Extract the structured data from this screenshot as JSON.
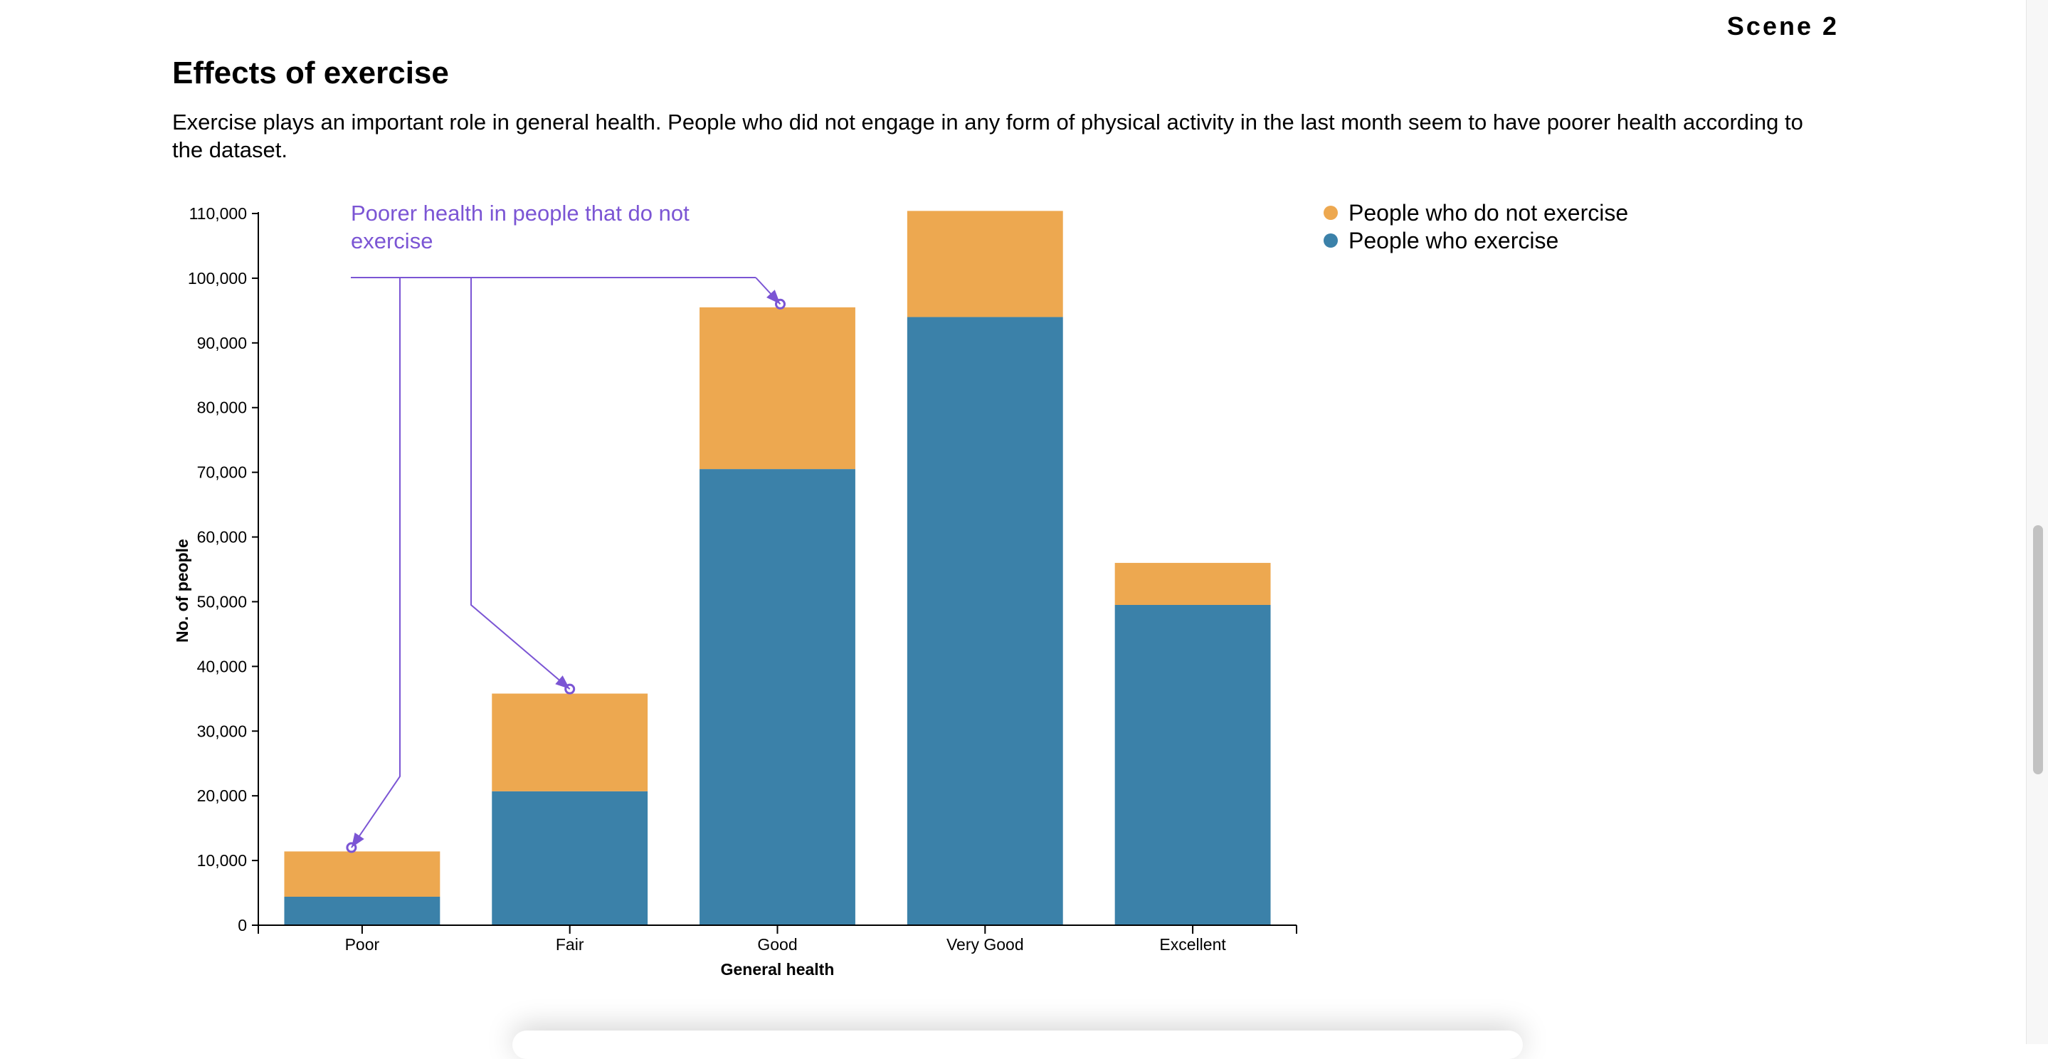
{
  "scene_label": "Scene 2",
  "title": "Effects of exercise",
  "description": "Exercise plays an important role in general health. People who did not engage in any form of physical activity in the last month seem to have poorer health according to the dataset.",
  "chart_data": {
    "type": "bar",
    "stacked": true,
    "categories": [
      "Poor",
      "Fair",
      "Good",
      "Very Good",
      "Excellent"
    ],
    "series": [
      {
        "name": "People who exercise",
        "values": [
          4400,
          20700,
          70500,
          94000,
          49500
        ],
        "color": "#3b81a9"
      },
      {
        "name": "People who do not exercise",
        "values": [
          7000,
          15100,
          25000,
          16400,
          6500
        ],
        "color": "#eda850"
      }
    ],
    "legend_order": [
      "People who do not exercise",
      "People who exercise"
    ],
    "title": "",
    "xlabel": "General health",
    "ylabel": "No. of people",
    "ylim": [
      0,
      110000
    ],
    "yticks": [
      0,
      10000,
      20000,
      30000,
      40000,
      50000,
      60000,
      70000,
      80000,
      90000,
      100000,
      110000
    ],
    "ytick_labels": [
      "0",
      "10,000",
      "20,000",
      "30,000",
      "40,000",
      "50,000",
      "60,000",
      "70,000",
      "80,000",
      "90,000",
      "100,000",
      "110,000"
    ],
    "grid": false,
    "legend_position": "top-right",
    "annotation": {
      "text_lines": [
        "Poorer health in people that do not",
        "exercise"
      ],
      "color": "#7b55d4",
      "targets": [
        {
          "category": "Poor",
          "value": 12000
        },
        {
          "category": "Fair",
          "value": 36500
        },
        {
          "category": "Good",
          "value": 96000
        }
      ]
    }
  }
}
